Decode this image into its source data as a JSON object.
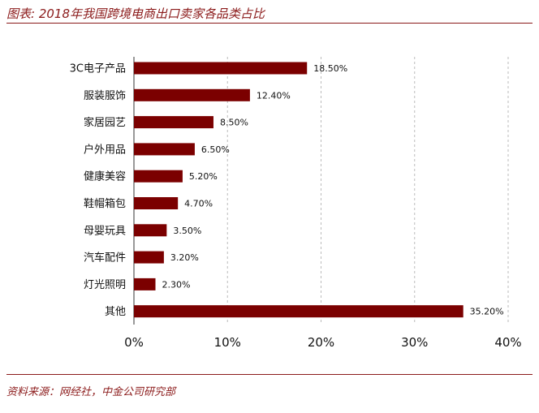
{
  "header": {
    "title": "图表: 2018年我国跨境电商出口卖家各品类占比"
  },
  "footer": {
    "source": "资料来源：网经社，中金公司研究部"
  },
  "colors": {
    "bar": "#7b0000",
    "accent": "#8b1a1a",
    "gridline": "#bbbbbb"
  },
  "chart_data": {
    "type": "bar",
    "orientation": "horizontal",
    "title": "",
    "xlabel": "",
    "ylabel": "",
    "categories": [
      "3C电子产品",
      "服装服饰",
      "家居园艺",
      "户外用品",
      "健康美容",
      "鞋帽箱包",
      "母婴玩具",
      "汽车配件",
      "灯光照明",
      "其他"
    ],
    "values": [
      18.5,
      12.4,
      8.5,
      6.5,
      5.2,
      4.7,
      3.5,
      3.2,
      2.3,
      35.2
    ],
    "value_labels": [
      "18.50%",
      "12.40%",
      "8.50%",
      "6.50%",
      "5.20%",
      "4.70%",
      "3.50%",
      "3.20%",
      "2.30%",
      "35.20%"
    ],
    "xlim": [
      0,
      40
    ],
    "x_ticks": [
      0,
      10,
      20,
      30,
      40
    ],
    "x_tick_labels": [
      "0%",
      "10%",
      "20%",
      "30%",
      "40%"
    ],
    "grid": "vertical dashed gridlines",
    "legend": "none"
  }
}
